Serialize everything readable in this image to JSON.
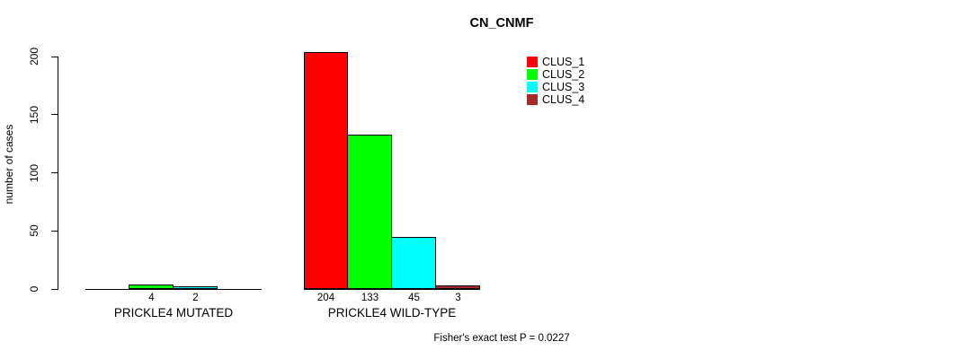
{
  "chart_data": {
    "type": "bar",
    "title": "CN_CNMF",
    "ylabel": "number of cases",
    "xlabel": "",
    "ylim": [
      0,
      200
    ],
    "yticks": [
      0,
      50,
      100,
      150,
      200
    ],
    "grid": false,
    "legend_position": "top-right",
    "categories": [
      "PRICKLE4 MUTATED",
      "PRICKLE4 WILD-TYPE"
    ],
    "series": [
      {
        "name": "CLUS_1",
        "color": "#ff0000",
        "values": [
          0,
          204
        ]
      },
      {
        "name": "CLUS_2",
        "color": "#00ff00",
        "values": [
          4,
          133
        ]
      },
      {
        "name": "CLUS_3",
        "color": "#00ffff",
        "values": [
          2,
          45
        ]
      },
      {
        "name": "CLUS_4",
        "color": "#a52a2a",
        "values": [
          0,
          3
        ]
      }
    ],
    "bar_value_labels": [
      [
        "",
        "4",
        "2",
        ""
      ],
      [
        "204",
        "133",
        "45",
        "3"
      ]
    ],
    "annotation": "Fisher's exact test P = 0.0227"
  }
}
